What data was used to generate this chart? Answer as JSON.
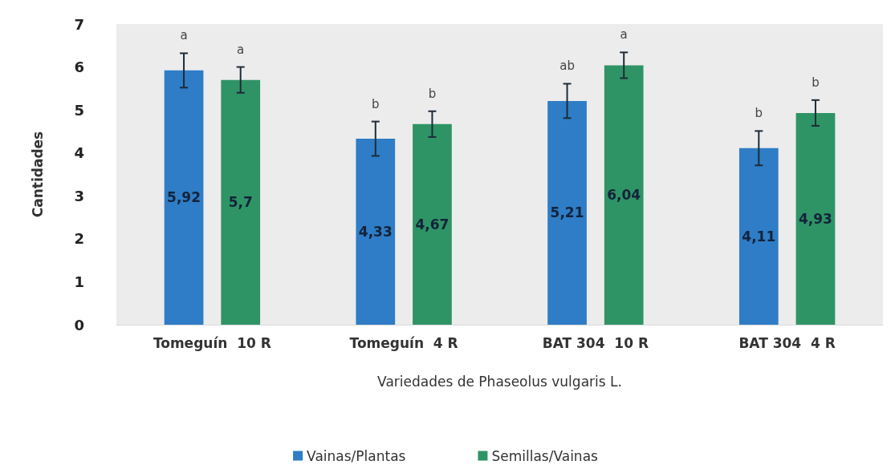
{
  "chart_data": {
    "type": "bar",
    "xlabel": "Variedades de Phaseolus vulgaris L.",
    "ylabel": "Cantidades",
    "categories": [
      "Tomeguín  10 R",
      "Tomeguín  4 R",
      "BAT 304  10 R",
      "BAT 304  4 R"
    ],
    "series": [
      {
        "name": "Vainas/Plantas",
        "color": "#2e7dc6",
        "values": [
          5.92,
          4.33,
          5.21,
          4.11
        ],
        "errors": [
          0.4,
          0.4,
          0.4,
          0.4
        ],
        "value_labels": [
          "5,92",
          "4,33",
          "5,21",
          "4,11"
        ]
      },
      {
        "name": "Semillas/Vainas",
        "color": "#2e9466",
        "values": [
          5.7,
          4.67,
          6.04,
          4.93
        ],
        "errors": [
          0.3,
          0.3,
          0.3,
          0.3
        ],
        "value_labels": [
          "5,7",
          "4,67",
          "6,04",
          "4,93"
        ]
      }
    ],
    "ylim": [
      0,
      7
    ],
    "yticks": [
      0,
      1,
      2,
      3,
      4,
      5,
      6,
      7
    ],
    "grid": false,
    "legend": "bottom",
    "annotations": [
      "a",
      "a",
      "b",
      "b",
      "ab",
      "a",
      "b",
      "b"
    ]
  }
}
